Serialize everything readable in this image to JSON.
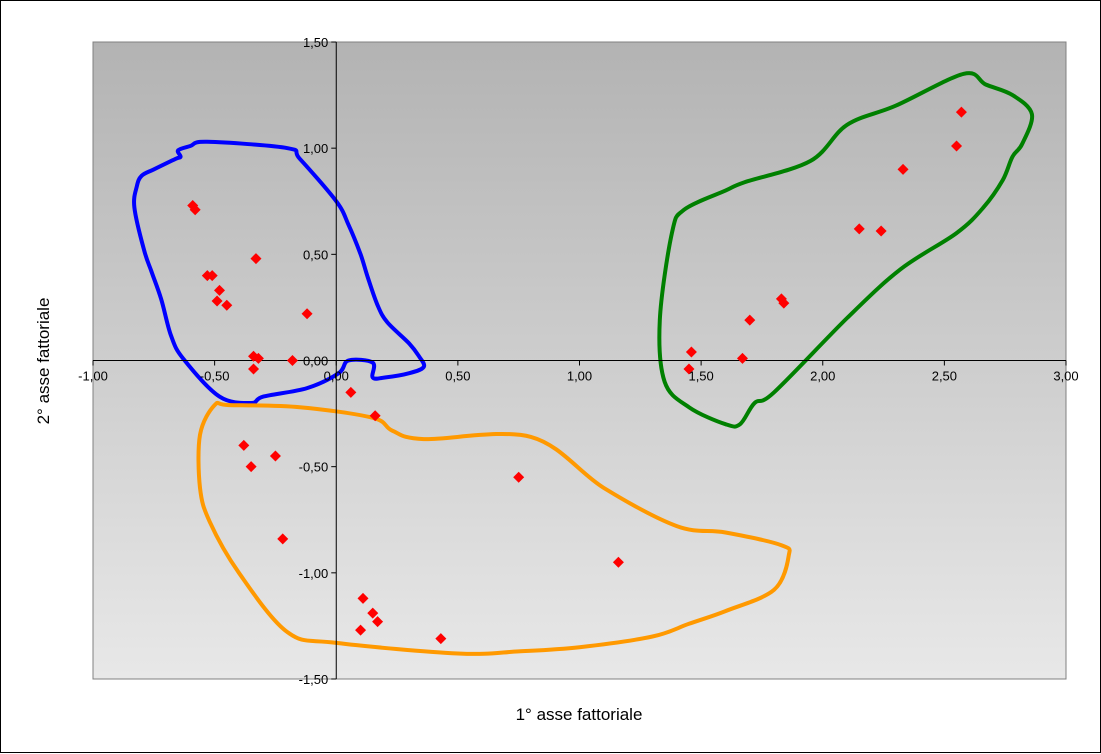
{
  "chart_data": {
    "type": "scatter",
    "xlabel": "1° asse fattoriale",
    "ylabel": "2° asse fattoriale",
    "xlim": [
      -1.0,
      3.0
    ],
    "ylim": [
      -1.5,
      1.5
    ],
    "x_ticks": [
      "-1,00",
      "-0,50",
      "0,00",
      "0,50",
      "1,00",
      "1,50",
      "2,00",
      "2,50",
      "3,00"
    ],
    "y_ticks": [
      "1,50",
      "1,00",
      "0,50",
      "0,00",
      "-0,50",
      "-1,00",
      "-1,50"
    ],
    "grid": false,
    "background_gradient": [
      "#b3b3b3",
      "#e8e8e8"
    ],
    "marker": {
      "shape": "diamond",
      "color": "#ff0000"
    },
    "points": [
      {
        "x": -0.59,
        "y": 0.73
      },
      {
        "x": -0.58,
        "y": 0.71
      },
      {
        "x": -0.33,
        "y": 0.48
      },
      {
        "x": -0.53,
        "y": 0.4
      },
      {
        "x": -0.51,
        "y": 0.4
      },
      {
        "x": -0.48,
        "y": 0.33
      },
      {
        "x": -0.49,
        "y": 0.28
      },
      {
        "x": -0.45,
        "y": 0.26
      },
      {
        "x": -0.12,
        "y": 0.22
      },
      {
        "x": -0.34,
        "y": 0.02
      },
      {
        "x": -0.32,
        "y": 0.01
      },
      {
        "x": -0.34,
        "y": -0.04
      },
      {
        "x": -0.18,
        "y": 0.0
      },
      {
        "x": 0.06,
        "y": -0.15
      },
      {
        "x": 0.16,
        "y": -0.26
      },
      {
        "x": -0.38,
        "y": -0.4
      },
      {
        "x": -0.35,
        "y": -0.5
      },
      {
        "x": -0.25,
        "y": -0.45
      },
      {
        "x": -0.22,
        "y": -0.84
      },
      {
        "x": 0.75,
        "y": -0.55
      },
      {
        "x": 1.16,
        "y": -0.95
      },
      {
        "x": 0.11,
        "y": -1.12
      },
      {
        "x": 0.15,
        "y": -1.19
      },
      {
        "x": 0.17,
        "y": -1.23
      },
      {
        "x": 0.1,
        "y": -1.27
      },
      {
        "x": 0.43,
        "y": -1.31
      },
      {
        "x": 1.46,
        "y": 0.04
      },
      {
        "x": 1.45,
        "y": -0.04
      },
      {
        "x": 1.67,
        "y": 0.01
      },
      {
        "x": 1.7,
        "y": 0.19
      },
      {
        "x": 1.83,
        "y": 0.29
      },
      {
        "x": 1.84,
        "y": 0.27
      },
      {
        "x": 2.15,
        "y": 0.62
      },
      {
        "x": 2.24,
        "y": 0.61
      },
      {
        "x": 2.33,
        "y": 0.9
      },
      {
        "x": 2.55,
        "y": 1.01
      },
      {
        "x": 2.57,
        "y": 1.17
      }
    ],
    "clusters": [
      {
        "color": "#0000ff",
        "outline": [
          [
            -0.83,
            0.72
          ],
          [
            -0.82,
            0.82
          ],
          [
            -0.8,
            0.87
          ],
          [
            -0.75,
            0.9
          ],
          [
            -0.66,
            0.95
          ],
          [
            -0.64,
            0.96
          ],
          [
            -0.65,
            0.99
          ],
          [
            -0.6,
            1.01
          ],
          [
            -0.53,
            1.03
          ],
          [
            -0.2,
            1.0
          ],
          [
            -0.15,
            0.95
          ],
          [
            0.0,
            0.75
          ],
          [
            0.05,
            0.64
          ],
          [
            0.1,
            0.5
          ],
          [
            0.13,
            0.39
          ],
          [
            0.17,
            0.26
          ],
          [
            0.21,
            0.18
          ],
          [
            0.3,
            0.08
          ],
          [
            0.34,
            0.02
          ],
          [
            0.36,
            -0.03
          ],
          [
            0.3,
            -0.06
          ],
          [
            0.2,
            -0.08
          ],
          [
            0.15,
            -0.08
          ],
          [
            0.15,
            -0.01
          ],
          [
            0.05,
            0.0
          ],
          [
            0.01,
            -0.06
          ],
          [
            -0.12,
            -0.13
          ],
          [
            -0.3,
            -0.17
          ],
          [
            -0.35,
            -0.2
          ],
          [
            -0.48,
            -0.17
          ],
          [
            -0.63,
            0.01
          ],
          [
            -0.68,
            0.12
          ],
          [
            -0.72,
            0.29
          ],
          [
            -0.76,
            0.42
          ],
          [
            -0.79,
            0.52
          ],
          [
            -0.83,
            0.72
          ]
        ]
      },
      {
        "color": "#ff9900",
        "outline": [
          [
            -0.5,
            -0.21
          ],
          [
            -0.44,
            -0.21
          ],
          [
            -0.15,
            -0.22
          ],
          [
            0.15,
            -0.27
          ],
          [
            0.23,
            -0.33
          ],
          [
            0.36,
            -0.37
          ],
          [
            0.8,
            -0.36
          ],
          [
            1.1,
            -0.6
          ],
          [
            1.4,
            -0.78
          ],
          [
            1.6,
            -0.81
          ],
          [
            1.83,
            -0.87
          ],
          [
            1.86,
            -0.92
          ],
          [
            1.8,
            -1.08
          ],
          [
            1.6,
            -1.18
          ],
          [
            1.45,
            -1.24
          ],
          [
            1.3,
            -1.3
          ],
          [
            1.0,
            -1.35
          ],
          [
            0.75,
            -1.37
          ],
          [
            0.5,
            -1.38
          ],
          [
            0.0,
            -1.33
          ],
          [
            -0.2,
            -1.28
          ],
          [
            -0.4,
            -1.0
          ],
          [
            -0.52,
            -0.76
          ],
          [
            -0.56,
            -0.6
          ],
          [
            -0.56,
            -0.35
          ],
          [
            -0.5,
            -0.21
          ]
        ]
      },
      {
        "color": "#008000",
        "outline": [
          [
            1.38,
            0.6
          ],
          [
            1.43,
            0.71
          ],
          [
            1.6,
            0.8
          ],
          [
            1.68,
            0.84
          ],
          [
            1.95,
            0.94
          ],
          [
            2.1,
            1.11
          ],
          [
            2.3,
            1.2
          ],
          [
            2.58,
            1.35
          ],
          [
            2.67,
            1.3
          ],
          [
            2.78,
            1.25
          ],
          [
            2.86,
            1.16
          ],
          [
            2.82,
            1.02
          ],
          [
            2.78,
            0.96
          ],
          [
            2.74,
            0.85
          ],
          [
            2.66,
            0.72
          ],
          [
            2.55,
            0.6
          ],
          [
            2.32,
            0.43
          ],
          [
            2.1,
            0.2
          ],
          [
            1.8,
            -0.15
          ],
          [
            1.72,
            -0.2
          ],
          [
            1.66,
            -0.3
          ],
          [
            1.6,
            -0.3
          ],
          [
            1.45,
            -0.22
          ],
          [
            1.35,
            -0.1
          ],
          [
            1.33,
            0.19
          ],
          [
            1.38,
            0.6
          ]
        ]
      }
    ]
  }
}
